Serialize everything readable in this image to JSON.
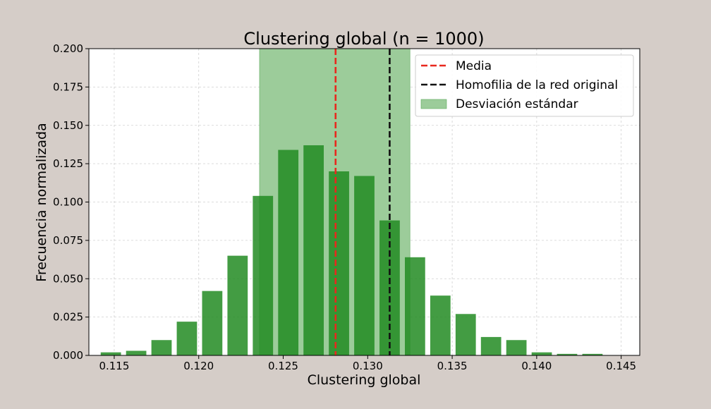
{
  "chart_data": {
    "type": "bar",
    "title": "Clustering global (n = 1000)",
    "xlabel": "Clustering global",
    "ylabel": "Frecuencia normalizada",
    "xlim": [
      0.1135,
      0.1461
    ],
    "ylim": [
      0,
      0.2
    ],
    "x_ticks": [
      0.115,
      0.12,
      0.125,
      0.13,
      0.135,
      0.14,
      0.145
    ],
    "x_tick_labels": [
      "0.115",
      "0.120",
      "0.125",
      "0.130",
      "0.135",
      "0.140",
      "0.145"
    ],
    "y_ticks": [
      0,
      0.025,
      0.05,
      0.075,
      0.1,
      0.125,
      0.15,
      0.175,
      0.2
    ],
    "y_tick_labels": [
      "0.000",
      "0.025",
      "0.050",
      "0.075",
      "0.100",
      "0.125",
      "0.150",
      "0.175",
      "0.200"
    ],
    "grid": true,
    "bar_color": "#228b22",
    "bar_width": 0.0012,
    "bins": [
      {
        "x": 0.1148,
        "y": 0.002
      },
      {
        "x": 0.1163,
        "y": 0.003
      },
      {
        "x": 0.1178,
        "y": 0.01
      },
      {
        "x": 0.1193,
        "y": 0.022
      },
      {
        "x": 0.1208,
        "y": 0.042
      },
      {
        "x": 0.1223,
        "y": 0.065
      },
      {
        "x": 0.1238,
        "y": 0.104
      },
      {
        "x": 0.1253,
        "y": 0.134
      },
      {
        "x": 0.1268,
        "y": 0.137
      },
      {
        "x": 0.1283,
        "y": 0.12
      },
      {
        "x": 0.1298,
        "y": 0.117
      },
      {
        "x": 0.1313,
        "y": 0.088
      },
      {
        "x": 0.1328,
        "y": 0.064
      },
      {
        "x": 0.1343,
        "y": 0.039
      },
      {
        "x": 0.1358,
        "y": 0.027
      },
      {
        "x": 0.1373,
        "y": 0.012
      },
      {
        "x": 0.1388,
        "y": 0.01
      },
      {
        "x": 0.1403,
        "y": 0.002
      },
      {
        "x": 0.1418,
        "y": 0.001
      },
      {
        "x": 0.1433,
        "y": 0.001
      }
    ],
    "mean": 0.1281,
    "mean_color": "#e8281e",
    "original": 0.1313,
    "original_color": "#111111",
    "std_band": [
      0.1236,
      0.1325
    ],
    "std_color": "#9ccc9a",
    "legend": {
      "position": "top-right",
      "items": [
        {
          "label": "Media",
          "kind": "dashed-line",
          "color": "#e8281e"
        },
        {
          "label": "Homofilia de la red original",
          "kind": "dashed-line",
          "color": "#111111"
        },
        {
          "label": "Desviación estándar",
          "kind": "patch",
          "color": "#9ccc9a"
        }
      ]
    }
  }
}
